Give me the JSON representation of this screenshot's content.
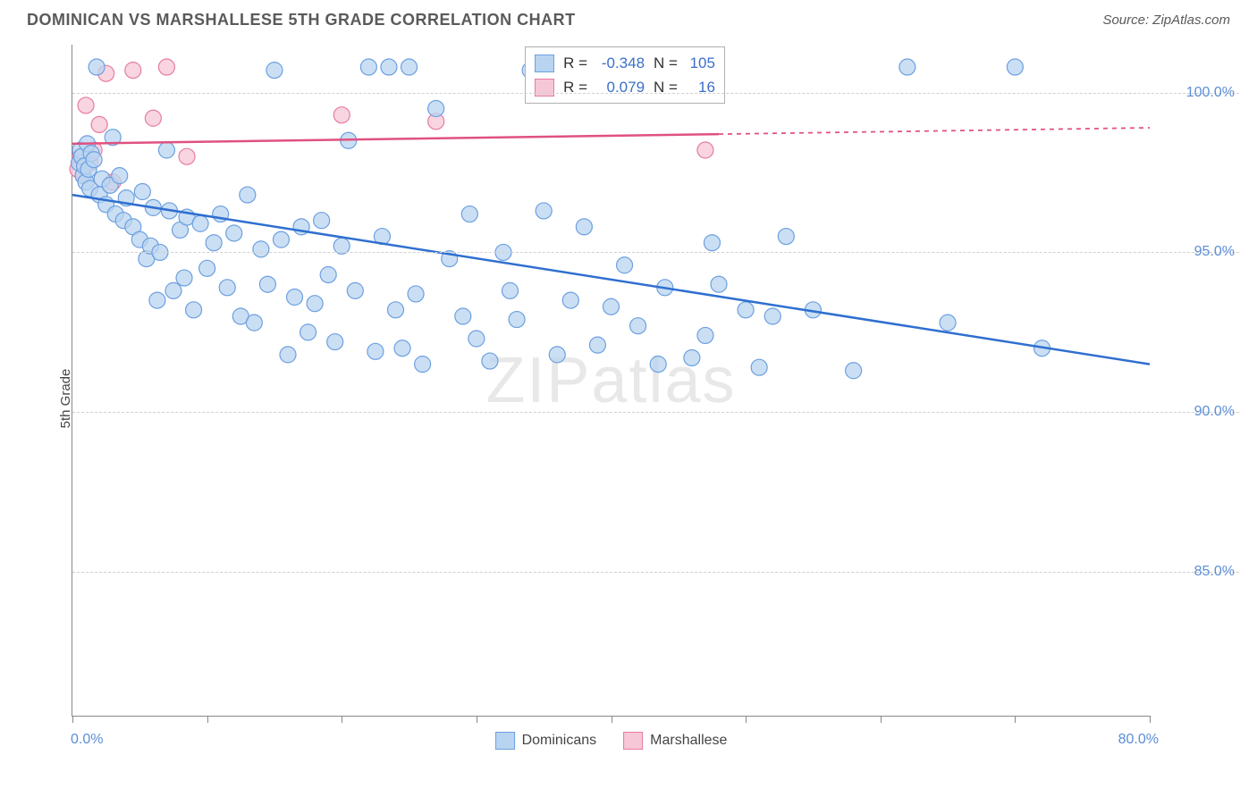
{
  "title": "DOMINICAN VS MARSHALLESE 5TH GRADE CORRELATION CHART",
  "source": "Source: ZipAtlas.com",
  "ylabel": "5th Grade",
  "watermark_a": "ZIP",
  "watermark_b": "atlas",
  "chart": {
    "type": "scatter",
    "xlim": [
      0,
      80
    ],
    "ylim": [
      80.5,
      101.5
    ],
    "xticks": [
      0,
      10,
      20,
      30,
      40,
      50,
      60,
      70,
      80
    ],
    "xlabel_min": "0.0%",
    "xlabel_max": "80.0%",
    "yticks": [
      85,
      90,
      95,
      100
    ],
    "ytick_labels": [
      "85.0%",
      "90.0%",
      "95.0%",
      "100.0%"
    ],
    "grid_color": "#d0d0d0",
    "background": "#ffffff"
  },
  "series": {
    "dominicans": {
      "label": "Dominicans",
      "color_fill": "#b9d4f0",
      "color_stroke": "#6ca0e0",
      "marker_radius": 9,
      "marker_opacity": 0.75,
      "R": "-0.348",
      "N": "105",
      "trend": {
        "x1": 0,
        "y1": 96.8,
        "x2": 80,
        "y2": 91.5,
        "xmax_data": 80,
        "color": "#2f6fd0",
        "width": 2.5
      },
      "points": [
        [
          0.5,
          97.8
        ],
        [
          0.6,
          98.2
        ],
        [
          0.7,
          98.0
        ],
        [
          0.8,
          97.4
        ],
        [
          0.9,
          97.7
        ],
        [
          1.0,
          97.2
        ],
        [
          1.1,
          98.4
        ],
        [
          1.2,
          97.6
        ],
        [
          1.3,
          97.0
        ],
        [
          1.4,
          98.1
        ],
        [
          1.6,
          97.9
        ],
        [
          1.8,
          100.8
        ],
        [
          2.0,
          96.8
        ],
        [
          2.2,
          97.3
        ],
        [
          2.5,
          96.5
        ],
        [
          2.8,
          97.1
        ],
        [
          3.0,
          98.6
        ],
        [
          3.2,
          96.2
        ],
        [
          3.5,
          97.4
        ],
        [
          3.8,
          96.0
        ],
        [
          4.0,
          96.7
        ],
        [
          4.5,
          95.8
        ],
        [
          5.0,
          95.4
        ],
        [
          5.2,
          96.9
        ],
        [
          5.5,
          94.8
        ],
        [
          5.8,
          95.2
        ],
        [
          6.0,
          96.4
        ],
        [
          6.3,
          93.5
        ],
        [
          6.5,
          95.0
        ],
        [
          7.0,
          98.2
        ],
        [
          7.2,
          96.3
        ],
        [
          7.5,
          93.8
        ],
        [
          8.0,
          95.7
        ],
        [
          8.3,
          94.2
        ],
        [
          8.5,
          96.1
        ],
        [
          9.0,
          93.2
        ],
        [
          9.5,
          95.9
        ],
        [
          10.0,
          94.5
        ],
        [
          10.5,
          95.3
        ],
        [
          11.0,
          96.2
        ],
        [
          11.5,
          93.9
        ],
        [
          12.0,
          95.6
        ],
        [
          12.5,
          93.0
        ],
        [
          13.0,
          96.8
        ],
        [
          13.5,
          92.8
        ],
        [
          14.0,
          95.1
        ],
        [
          14.5,
          94.0
        ],
        [
          15.0,
          100.7
        ],
        [
          15.5,
          95.4
        ],
        [
          16.0,
          91.8
        ],
        [
          16.5,
          93.6
        ],
        [
          17.0,
          95.8
        ],
        [
          17.5,
          92.5
        ],
        [
          18.0,
          93.4
        ],
        [
          18.5,
          96.0
        ],
        [
          19.0,
          94.3
        ],
        [
          19.5,
          92.2
        ],
        [
          20.0,
          95.2
        ],
        [
          20.5,
          98.5
        ],
        [
          21.0,
          93.8
        ],
        [
          22.0,
          100.8
        ],
        [
          22.5,
          91.9
        ],
        [
          23.0,
          95.5
        ],
        [
          23.5,
          100.8
        ],
        [
          24.0,
          93.2
        ],
        [
          24.5,
          92.0
        ],
        [
          25.0,
          100.8
        ],
        [
          25.5,
          93.7
        ],
        [
          26.0,
          91.5
        ],
        [
          27.0,
          99.5
        ],
        [
          28.0,
          94.8
        ],
        [
          29.0,
          93.0
        ],
        [
          29.5,
          96.2
        ],
        [
          30.0,
          92.3
        ],
        [
          31.0,
          91.6
        ],
        [
          32.0,
          95.0
        ],
        [
          32.5,
          93.8
        ],
        [
          33.0,
          92.9
        ],
        [
          34.0,
          100.7
        ],
        [
          35.0,
          96.3
        ],
        [
          36.0,
          91.8
        ],
        [
          37.0,
          93.5
        ],
        [
          38.0,
          95.8
        ],
        [
          39.0,
          92.1
        ],
        [
          40.0,
          93.3
        ],
        [
          41.0,
          94.6
        ],
        [
          42.0,
          92.7
        ],
        [
          43.0,
          100.8
        ],
        [
          43.5,
          91.5
        ],
        [
          44.0,
          93.9
        ],
        [
          45.0,
          100.5
        ],
        [
          46.0,
          91.7
        ],
        [
          47.0,
          92.4
        ],
        [
          47.5,
          95.3
        ],
        [
          48.0,
          94.0
        ],
        [
          50.0,
          93.2
        ],
        [
          51.0,
          91.4
        ],
        [
          52.0,
          93.0
        ],
        [
          53.0,
          95.5
        ],
        [
          55.0,
          93.2
        ],
        [
          58.0,
          91.3
        ],
        [
          62.0,
          100.8
        ],
        [
          65.0,
          92.8
        ],
        [
          70.0,
          100.8
        ],
        [
          72.0,
          92.0
        ]
      ]
    },
    "marshallese": {
      "label": "Marshallese",
      "color_fill": "#f6c7d6",
      "color_stroke": "#e77ba5",
      "marker_radius": 9,
      "marker_opacity": 0.75,
      "R": "0.079",
      "N": "16",
      "trend": {
        "x1": 0,
        "y1": 98.4,
        "x2": 80,
        "y2": 98.9,
        "xmax_data": 48,
        "color": "#e0517f",
        "width": 2.5
      },
      "points": [
        [
          0.4,
          97.6
        ],
        [
          0.6,
          98.0
        ],
        [
          0.8,
          97.4
        ],
        [
          1.0,
          99.6
        ],
        [
          1.3,
          97.8
        ],
        [
          1.6,
          98.2
        ],
        [
          2.0,
          99.0
        ],
        [
          2.5,
          100.6
        ],
        [
          3.0,
          97.2
        ],
        [
          4.5,
          100.7
        ],
        [
          6.0,
          99.2
        ],
        [
          7.0,
          100.8
        ],
        [
          8.5,
          98.0
        ],
        [
          20.0,
          99.3
        ],
        [
          27.0,
          99.1
        ],
        [
          47.0,
          98.2
        ]
      ]
    }
  },
  "statbox": {
    "R_label": "R =",
    "N_label": "N ="
  }
}
